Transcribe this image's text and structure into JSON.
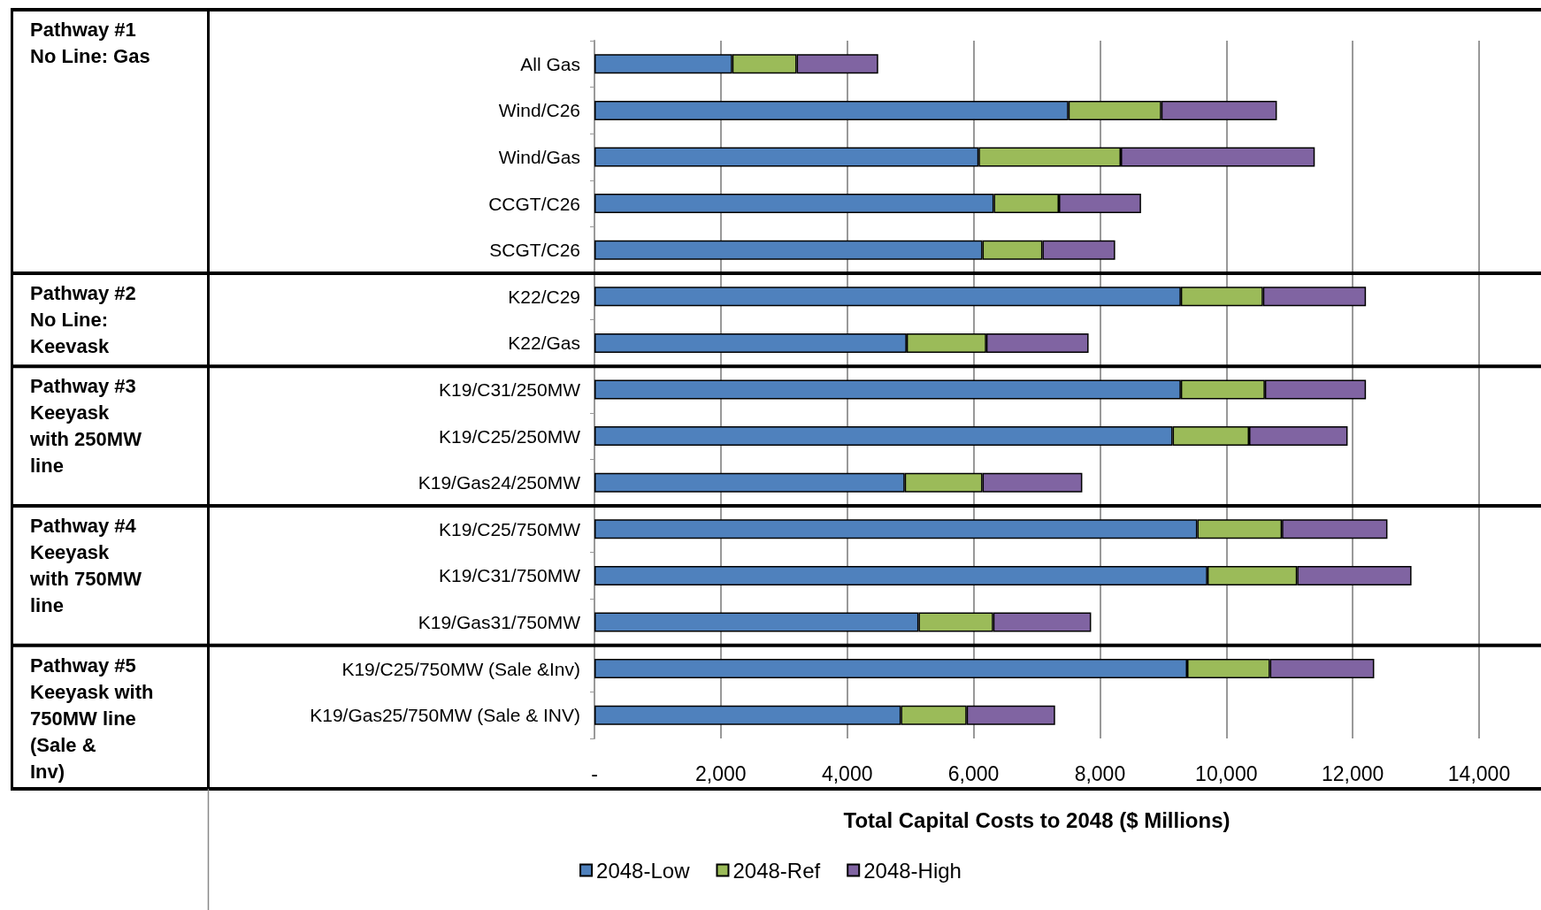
{
  "chart_data": {
    "type": "bar",
    "orientation": "horizontal",
    "stacked": true,
    "xlabel": "Total Capital Costs to 2048 ($ Millions)",
    "categories": [
      "All Gas",
      "Wind/C26",
      "Wind/Gas",
      "CCGT/C26",
      "SCGT/C26",
      "K22/C29",
      "K22/Gas",
      "K19/C31/250MW",
      "K19/C25/250MW",
      "K19/Gas24/250MW",
      "K19/C25/750MW",
      "K19/C31/750MW",
      "K19/Gas31/750MW",
      "K19/C25/750MW (Sale &Inv)",
      "K19/Gas25/750MW (Sale & INV)"
    ],
    "series": [
      {
        "name": "2048-Low",
        "color": "#4f81bd",
        "values": [
          2180,
          7500,
          6080,
          6320,
          6140,
          9280,
          4940,
          9280,
          9150,
          4910,
          9540,
          9700,
          5130,
          9380,
          4850
        ]
      },
      {
        "name": "2048-Ref",
        "color": "#9bbb59",
        "values": [
          1020,
          1470,
          2250,
          1030,
          950,
          1300,
          1260,
          1330,
          1210,
          1230,
          1340,
          1420,
          1180,
          1310,
          1040
        ]
      },
      {
        "name": "2048-High",
        "color": "#8064a2",
        "values": [
          1290,
          1830,
          3070,
          1300,
          1150,
          1630,
          1620,
          1600,
          1560,
          1580,
          1670,
          1810,
          1550,
          1650,
          1400
        ]
      }
    ],
    "xlim": [
      0,
      14000
    ],
    "xticks": [
      {
        "value": 0,
        "label": "-"
      },
      {
        "value": 2000,
        "label": "2,000"
      },
      {
        "value": 4000,
        "label": "4,000"
      },
      {
        "value": 6000,
        "label": "6,000"
      },
      {
        "value": 8000,
        "label": "8,000"
      },
      {
        "value": 10000,
        "label": "10,000"
      },
      {
        "value": 12000,
        "label": "12,000"
      },
      {
        "value": 14000,
        "label": "14,000"
      }
    ],
    "grid": "x",
    "legend": "bottom",
    "annotations": [
      "Pathway #1\nNo Line: Gas",
      "Pathway #2\nNo Line:\nKeevask",
      "Pathway #3\nKeeyask\nwith 250MW\nline",
      "Pathway #4\nKeeyask\nwith 750MW\nline",
      "Pathway #5\nKeeyask with\n750MW line\n(Sale &\nInv)"
    ]
  }
}
